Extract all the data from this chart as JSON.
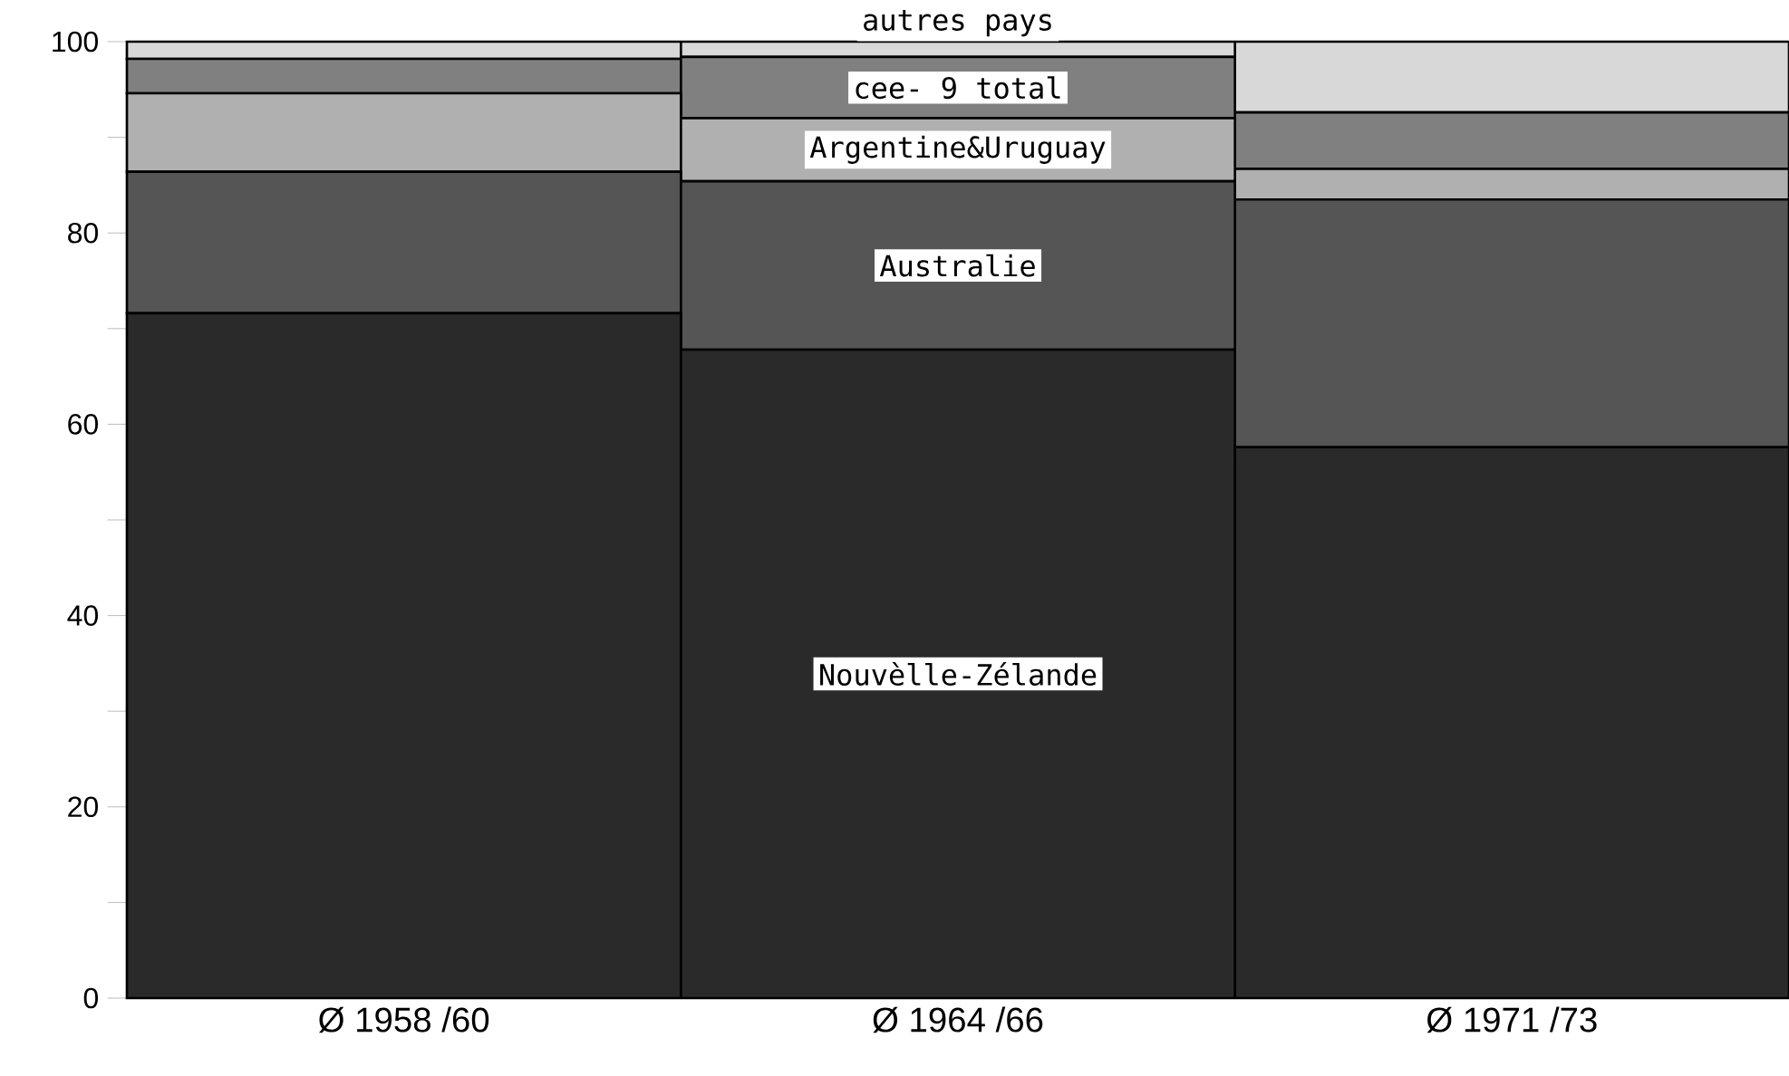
{
  "chart_data": {
    "type": "bar",
    "stacked": true,
    "categories": [
      "Ø 1958 /60",
      "Ø 1964 /66",
      "Ø 1971 /73"
    ],
    "series": [
      {
        "name": "Nouvèlle-Zélande",
        "color": "#2a2a2a",
        "values": [
          71.6,
          67.8,
          57.6
        ]
      },
      {
        "name": "Australie",
        "color": "#555555",
        "values": [
          14.8,
          17.6,
          25.9
        ]
      },
      {
        "name": "Argentine&Uruguay",
        "color": "#b0b0b0",
        "values": [
          8.2,
          6.6,
          3.2
        ]
      },
      {
        "name": "cee- 9 total",
        "color": "#808080",
        "values": [
          3.6,
          6.4,
          5.9
        ]
      },
      {
        "name": "autres pays",
        "color": "#d8d8d8",
        "values": [
          1.8,
          1.6,
          7.4
        ]
      }
    ],
    "ylim": [
      0,
      100
    ],
    "yticks": [
      0,
      {
        "value": 10,
        "label": null
      },
      20,
      {
        "value": 30,
        "label": null
      },
      40,
      {
        "value": 50,
        "label": null
      },
      60,
      {
        "value": 70,
        "label": null
      },
      80,
      {
        "value": 90,
        "label": null
      },
      100
    ],
    "legend": false
  }
}
